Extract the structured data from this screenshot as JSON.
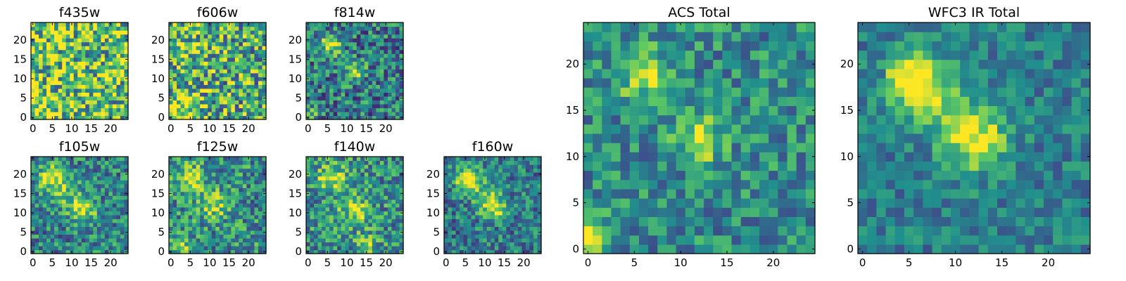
{
  "figure": {
    "colormap": [
      "#440154",
      "#3b528b",
      "#21908d",
      "#5dc863",
      "#fde725"
    ],
    "axis_color": "#000000"
  },
  "chart_data": [
    {
      "type": "heatmap",
      "title": "f435w",
      "xlabel": "",
      "ylabel": "",
      "xlim": [
        0,
        24
      ],
      "ylim": [
        0,
        24
      ],
      "xticks": [
        "0",
        "5",
        "10",
        "15",
        "20"
      ],
      "yticks": [
        "0",
        "5",
        "10",
        "15",
        "20"
      ],
      "grid": false,
      "colormap": "viridis",
      "pattern": "noise",
      "blobs": [
        [
          2,
          2,
          3,
          0.25
        ]
      ],
      "base": 0.72,
      "noise": 0.45,
      "seed": 11
    },
    {
      "type": "heatmap",
      "title": "f606w",
      "xlabel": "",
      "ylabel": "",
      "xlim": [
        0,
        24
      ],
      "ylim": [
        0,
        24
      ],
      "xticks": [
        "0",
        "5",
        "10",
        "15",
        "20"
      ],
      "yticks": [
        "0",
        "5",
        "10",
        "15",
        "20"
      ],
      "grid": false,
      "colormap": "viridis",
      "pattern": "noise",
      "blobs": [
        [
          2,
          2,
          3,
          0.35
        ],
        [
          6,
          17,
          4,
          0.1
        ]
      ],
      "base": 0.62,
      "noise": 0.42,
      "seed": 23
    },
    {
      "type": "heatmap",
      "title": "f814w",
      "xlabel": "",
      "ylabel": "",
      "xlim": [
        0,
        24
      ],
      "ylim": [
        0,
        24
      ],
      "xticks": [
        "0",
        "5",
        "10",
        "15",
        "20"
      ],
      "yticks": [
        "0",
        "5",
        "10",
        "15",
        "20"
      ],
      "grid": false,
      "colormap": "viridis",
      "pattern": "blobs",
      "blobs": [
        [
          6,
          19,
          1.8,
          0.55
        ],
        [
          12,
          12,
          1.8,
          0.4
        ],
        [
          0,
          0,
          1.5,
          0.4
        ]
      ],
      "base": 0.42,
      "noise": 0.32,
      "seed": 37
    },
    {
      "type": "heatmap",
      "title": "f105w",
      "xlabel": "",
      "ylabel": "",
      "xlim": [
        0,
        24
      ],
      "ylim": [
        0,
        24
      ],
      "xticks": [
        "0",
        "5",
        "10",
        "15",
        "20"
      ],
      "yticks": [
        "0",
        "5",
        "10",
        "15",
        "20"
      ],
      "grid": false,
      "colormap": "viridis",
      "pattern": "blobs",
      "blobs": [
        [
          5,
          19,
          2.4,
          0.5
        ],
        [
          13,
          11,
          2.4,
          0.42
        ],
        [
          9,
          15,
          2.5,
          0.25
        ]
      ],
      "base": 0.45,
      "noise": 0.28,
      "seed": 41
    },
    {
      "type": "heatmap",
      "title": "f125w",
      "xlabel": "",
      "ylabel": "",
      "xlim": [
        0,
        24
      ],
      "ylim": [
        0,
        24
      ],
      "xticks": [
        "0",
        "5",
        "10",
        "15",
        "20"
      ],
      "yticks": [
        "0",
        "5",
        "10",
        "15",
        "20"
      ],
      "grid": false,
      "colormap": "viridis",
      "pattern": "blobs",
      "blobs": [
        [
          5,
          19,
          2.6,
          0.4
        ],
        [
          11,
          12,
          2.6,
          0.35
        ],
        [
          3,
          1,
          2,
          0.3
        ]
      ],
      "base": 0.5,
      "noise": 0.3,
      "seed": 53
    },
    {
      "type": "heatmap",
      "title": "f140w",
      "xlabel": "",
      "ylabel": "",
      "xlim": [
        0,
        24
      ],
      "ylim": [
        0,
        24
      ],
      "xticks": [
        "0",
        "5",
        "10",
        "15",
        "20"
      ],
      "yticks": [
        "0",
        "5",
        "10",
        "15",
        "20"
      ],
      "grid": false,
      "colormap": "viridis",
      "pattern": "blobs",
      "blobs": [
        [
          6,
          19,
          2.4,
          0.45
        ],
        [
          12,
          11,
          2.8,
          0.35
        ],
        [
          15,
          2,
          2,
          0.25
        ]
      ],
      "base": 0.5,
      "noise": 0.3,
      "seed": 67
    },
    {
      "type": "heatmap",
      "title": "f160w",
      "xlabel": "",
      "ylabel": "",
      "xlim": [
        0,
        24
      ],
      "ylim": [
        0,
        24
      ],
      "xticks": [
        "0",
        "5",
        "10",
        "15",
        "20"
      ],
      "yticks": [
        "0",
        "5",
        "10",
        "15",
        "20"
      ],
      "grid": false,
      "colormap": "viridis",
      "pattern": "ridge",
      "blobs": [
        [
          6,
          19,
          2.4,
          0.45
        ],
        [
          12,
          12,
          2.6,
          0.35
        ]
      ],
      "base": 0.42,
      "noise": 0.26,
      "seed": 79
    },
    {
      "type": "heatmap",
      "title": "ACS Total",
      "xlabel": "",
      "ylabel": "",
      "xlim": [
        0,
        24
      ],
      "ylim": [
        0,
        24
      ],
      "xticks": [
        "0",
        "5",
        "10",
        "15",
        "20"
      ],
      "yticks": [
        "0",
        "5",
        "10",
        "15",
        "20"
      ],
      "grid": false,
      "colormap": "viridis",
      "pattern": "blobs",
      "blobs": [
        [
          6,
          19,
          1.8,
          0.5
        ],
        [
          12,
          12,
          1.8,
          0.45
        ],
        [
          0,
          1,
          1.6,
          0.55
        ]
      ],
      "base": 0.48,
      "noise": 0.24,
      "seed": 91
    },
    {
      "type": "heatmap",
      "title": "WFC3 IR Total",
      "xlabel": "",
      "ylabel": "",
      "xlim": [
        0,
        24
      ],
      "ylim": [
        0,
        24
      ],
      "xticks": [
        "0",
        "5",
        "10",
        "15",
        "20"
      ],
      "yticks": [
        "0",
        "5",
        "10",
        "15",
        "20"
      ],
      "grid": false,
      "colormap": "viridis",
      "pattern": "ridge",
      "blobs": [
        [
          6,
          18,
          2.4,
          0.5
        ],
        [
          12,
          12,
          2.6,
          0.4
        ]
      ],
      "base": 0.42,
      "noise": 0.18,
      "seed": 103
    }
  ]
}
